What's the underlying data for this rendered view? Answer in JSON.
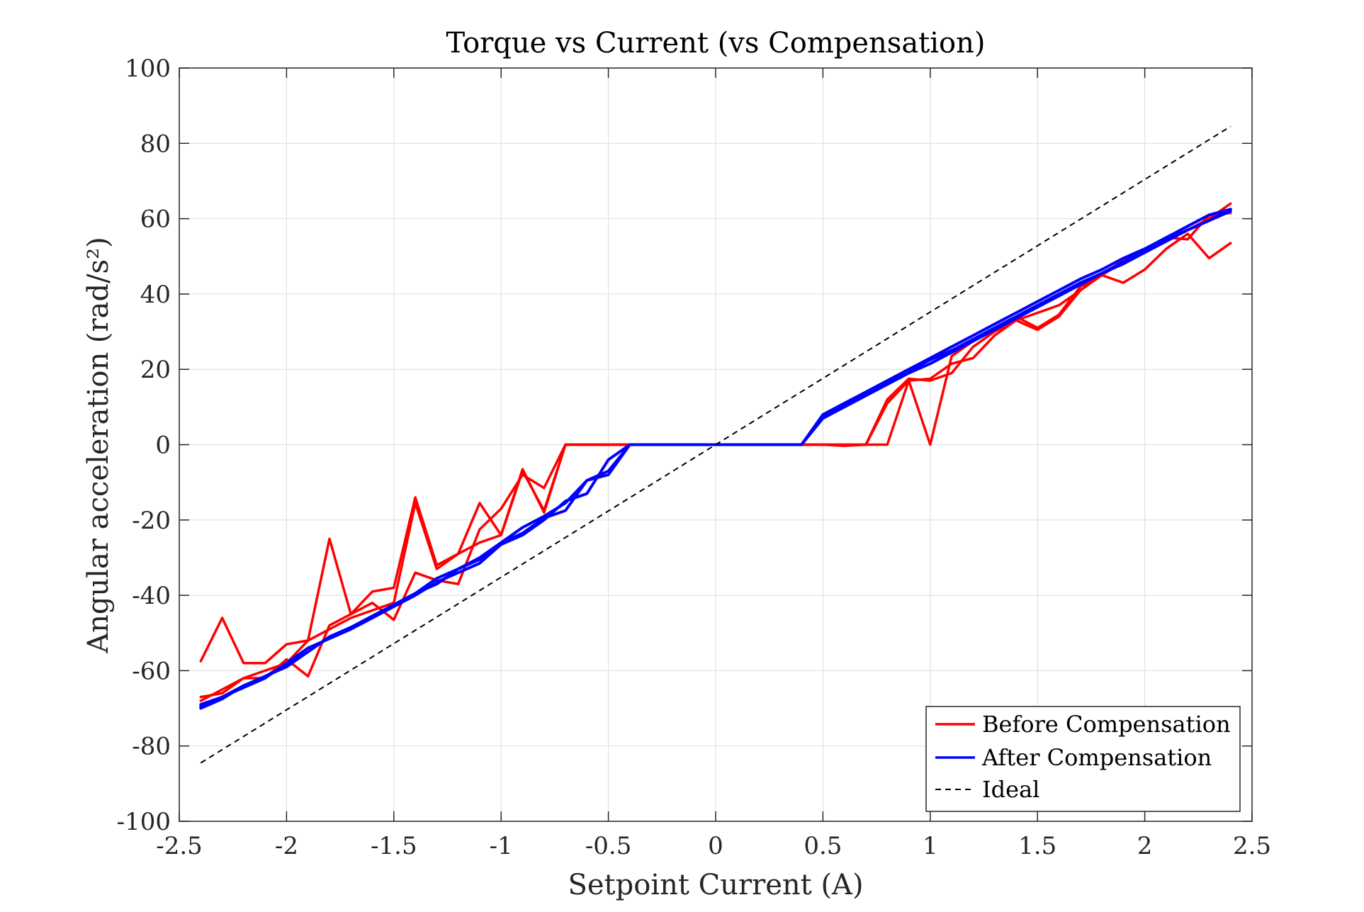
{
  "chart_data": {
    "type": "line",
    "title": "Torque vs Current (vs Compensation)",
    "xlabel": "Setpoint Current (A)",
    "ylabel": "Angular acceleration (rad/s²)",
    "xlim": [
      -2.5,
      2.5
    ],
    "ylim": [
      -100,
      100
    ],
    "xticks": [
      -2.5,
      -2,
      -1.5,
      -1,
      -0.5,
      0,
      0.5,
      1,
      1.5,
      2,
      2.5
    ],
    "xtick_labels": [
      "-2.5",
      "-2",
      "-1.5",
      "-1",
      "-0.5",
      "0",
      "0.5",
      "1",
      "1.5",
      "2",
      "2.5"
    ],
    "yticks": [
      -100,
      -80,
      -60,
      -40,
      -20,
      0,
      20,
      40,
      60,
      80,
      100
    ],
    "ytick_labels": [
      "-100",
      "-80",
      "-60",
      "-40",
      "-20",
      "0",
      "20",
      "40",
      "60",
      "80",
      "100"
    ],
    "grid": true,
    "legend_position": "bottom-right",
    "legend": [
      {
        "label": "Before Compensation",
        "color": "#ff0000",
        "style": "solid"
      },
      {
        "label": "After Compensation",
        "color": "#0000ff",
        "style": "solid"
      },
      {
        "label": "Ideal",
        "color": "#000000",
        "style": "dashed"
      }
    ],
    "x": [
      -2.4,
      -2.3,
      -2.2,
      -2.1,
      -2.0,
      -1.9,
      -1.8,
      -1.7,
      -1.6,
      -1.5,
      -1.4,
      -1.3,
      -1.2,
      -1.1,
      -1.0,
      -0.9,
      -0.8,
      -0.7,
      -0.6,
      -0.5,
      -0.4,
      -0.3,
      -0.2,
      -0.1,
      0.0,
      0.1,
      0.2,
      0.3,
      0.4,
      0.5,
      0.6,
      0.7,
      0.8,
      0.9,
      1.0,
      1.1,
      1.2,
      1.3,
      1.4,
      1.5,
      1.6,
      1.7,
      1.8,
      1.9,
      2.0,
      2.1,
      2.2,
      2.3,
      2.4
    ],
    "series": [
      {
        "group": "before",
        "color": "#ff0000",
        "values": [
          -57.5,
          -46,
          -58,
          -58,
          -53,
          -52,
          -25,
          -45,
          -39,
          -38,
          -14,
          -32,
          -29,
          -15.5,
          -24,
          -6.5,
          -18,
          0,
          0,
          0,
          0,
          0,
          0,
          0,
          0,
          0,
          0,
          0,
          0,
          0,
          0,
          0,
          11,
          17,
          17.5,
          21.5,
          23,
          29,
          33,
          30.5,
          34,
          41,
          45,
          43,
          46.5,
          52,
          56,
          49.5,
          53.5
        ]
      },
      {
        "group": "before",
        "color": "#ff0000",
        "values": [
          -67,
          -66,
          -62,
          -62,
          -57,
          -61.5,
          -48,
          -45,
          -42,
          -46.5,
          -34,
          -36,
          -37,
          -22.5,
          -17,
          -8,
          -11.5,
          0,
          0,
          0,
          0,
          0,
          0,
          0,
          0,
          0,
          0,
          0,
          0,
          0,
          -0.3,
          0,
          0,
          17,
          0,
          23.5,
          27.5,
          31,
          34,
          31,
          34.5,
          42,
          45,
          48.5,
          51.5,
          55,
          54.5,
          61,
          61.5
        ]
      },
      {
        "group": "before",
        "color": "#ff0000",
        "values": [
          -68,
          -65,
          -62,
          -60,
          -58,
          -52,
          -49,
          -46,
          -44,
          -42,
          -15.5,
          -33,
          -29,
          -26,
          -24,
          -7,
          -17.5,
          0,
          0,
          0,
          0,
          0,
          0,
          0,
          0,
          0,
          0,
          0,
          0,
          0,
          0,
          0,
          12,
          17.5,
          17,
          19,
          26,
          30,
          33,
          35,
          37,
          41,
          45,
          49,
          52,
          54,
          57,
          60,
          64
        ]
      },
      {
        "group": "after",
        "color": "#0000ff",
        "values": [
          -70,
          -67.5,
          -64,
          -61.5,
          -59,
          -55,
          -51,
          -48.5,
          -45.5,
          -42.5,
          -39.5,
          -35.5,
          -33,
          -30.5,
          -26,
          -23.5,
          -19.5,
          -17.5,
          -9.5,
          -8,
          0,
          0,
          0,
          0,
          0,
          0,
          0,
          0,
          0,
          7.5,
          10.5,
          13.5,
          16.5,
          19.5,
          22.5,
          25,
          28,
          31,
          34,
          37,
          40,
          43,
          45.5,
          48,
          51,
          54,
          57,
          59.5,
          62.5
        ]
      },
      {
        "group": "after",
        "color": "#0000ff",
        "values": [
          -69,
          -67,
          -64.5,
          -62,
          -58,
          -54,
          -51.5,
          -49,
          -46,
          -43,
          -40,
          -36.5,
          -34,
          -31.5,
          -26.5,
          -24,
          -20,
          -15,
          -13,
          -4,
          0,
          0,
          0,
          0,
          0,
          0,
          0,
          0,
          0,
          7,
          10,
          13,
          16,
          19,
          21.5,
          24.5,
          27.5,
          30.5,
          33.5,
          36.5,
          39.5,
          42.5,
          45.5,
          48.5,
          51.5,
          54.5,
          57,
          59.5,
          62
        ]
      },
      {
        "group": "after",
        "color": "#0000ff",
        "values": [
          -69.5,
          -67,
          -64,
          -61.5,
          -58.5,
          -55,
          -51,
          -48.5,
          -46,
          -42.5,
          -39.5,
          -37,
          -33,
          -30,
          -26,
          -22,
          -19,
          -15.5,
          -9.5,
          -7,
          0,
          0,
          0,
          0,
          0,
          0,
          0,
          0,
          0,
          8,
          11,
          14,
          17,
          20,
          23,
          26,
          29,
          32,
          35,
          38,
          41,
          44,
          46.5,
          49.5,
          52,
          55,
          58,
          61,
          62.5
        ]
      }
    ],
    "ideal": {
      "color": "#000000",
      "style": "dashed",
      "x": [
        -2.4,
        2.4
      ],
      "values": [
        -84.5,
        84.5
      ]
    }
  }
}
